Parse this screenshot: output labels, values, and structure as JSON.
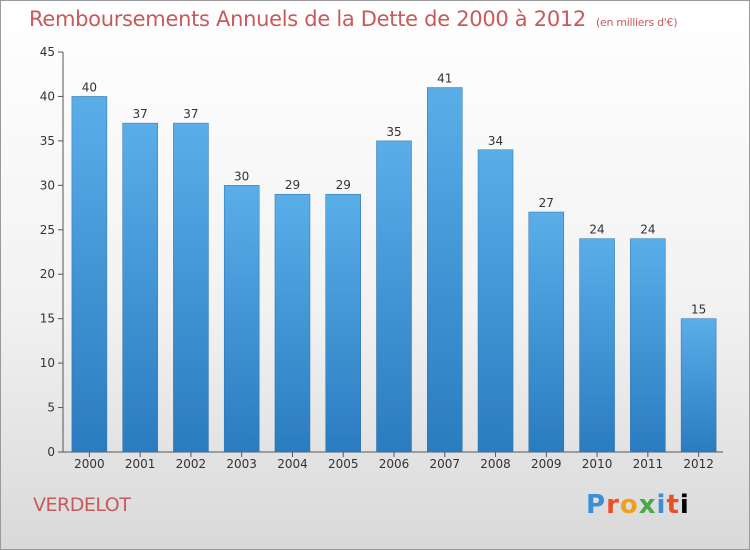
{
  "header": {
    "title": "Remboursements Annuels de la Dette de 2000 à 2012",
    "subtitle": "(en milliers d'€)"
  },
  "footer": {
    "commune": "VERDELOT",
    "logo": "Proxiti"
  },
  "colors": {
    "bar_top": "#5aaee8",
    "bar_bottom": "#2a7cc0",
    "title": "#c85a5a"
  },
  "chart_data": {
    "type": "bar",
    "title": "Remboursements Annuels de la Dette de 2000 à 2012",
    "subtitle": "(en milliers d'€)",
    "categories": [
      "2000",
      "2001",
      "2002",
      "2003",
      "2004",
      "2005",
      "2006",
      "2007",
      "2008",
      "2009",
      "2010",
      "2011",
      "2012"
    ],
    "values": [
      40,
      37,
      37,
      30,
      29,
      29,
      35,
      41,
      34,
      27,
      24,
      24,
      15
    ],
    "xlabel": "",
    "ylabel": "",
    "ylim": [
      0,
      45
    ],
    "yticks": [
      0,
      5,
      10,
      15,
      20,
      25,
      30,
      35,
      40,
      45
    ],
    "grid": false,
    "legend": "none"
  }
}
